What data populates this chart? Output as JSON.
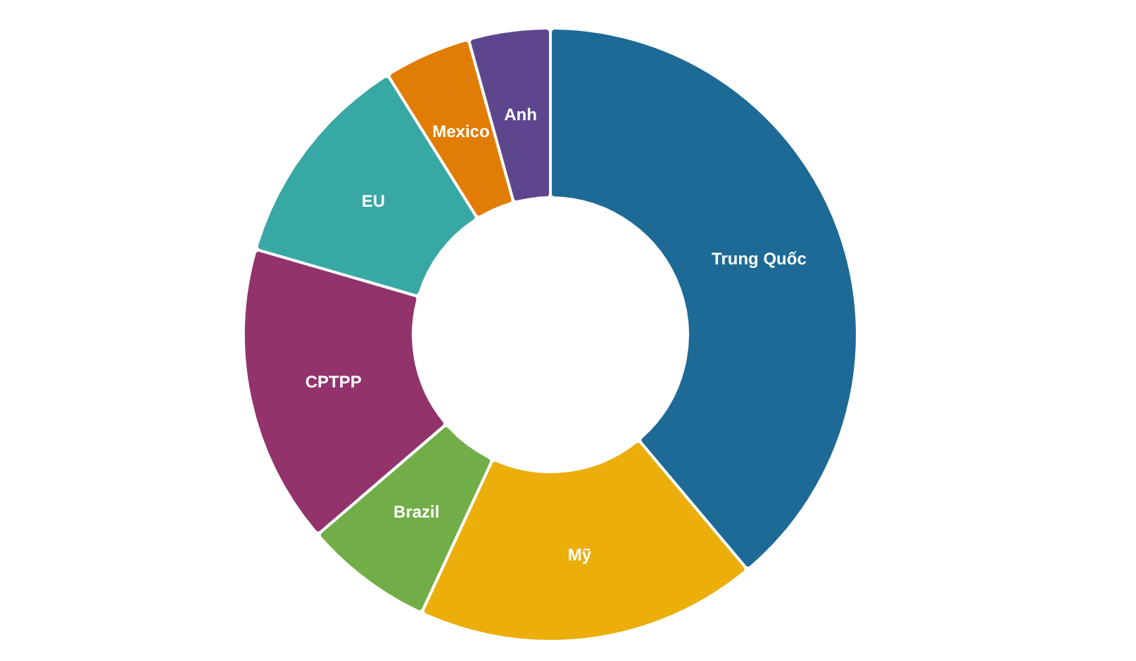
{
  "chart_data": {
    "type": "donut",
    "categories": [
      "Trung Quốc",
      "Mỹ",
      "Brazil",
      "CPTPP",
      "EU",
      "Mexico",
      "Anh"
    ],
    "values": [
      38.9,
      18,
      6.8,
      15.8,
      11.6,
      4.6,
      4.3
    ],
    "colors": [
      "#1d6a96",
      "#ebae0b",
      "#72ae48",
      "#92336c",
      "#38a8a5",
      "#e17d05",
      "#5e468f"
    ]
  }
}
